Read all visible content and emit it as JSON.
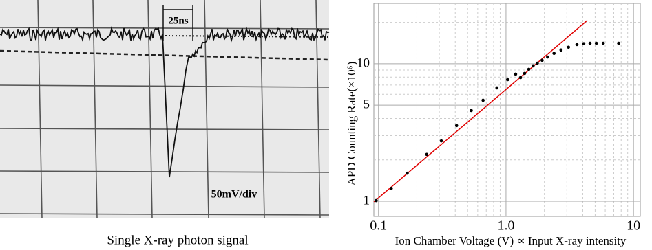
{
  "oscilloscope": {
    "time_label": "25ns",
    "scale_label": "50mV/div",
    "caption": "Single X-ray photon signal"
  },
  "chart_data": {
    "type": "scatter",
    "xlabel": "Ion Chamber Voltage (V) ∝ Input X-ray intensity",
    "ylabel": "APD Counting Rate(×10⁶)",
    "log_x": true,
    "log_y": true,
    "grid": true,
    "xlim": [
      0.092,
      11.3
    ],
    "ylim": [
      0.776,
      27.5
    ],
    "xticks": [
      0.1,
      {
        "value": 1,
        "label": "1.0"
      },
      10
    ],
    "yticks": [
      1,
      5,
      10
    ],
    "minor_xticks": [
      0.2,
      0.3,
      0.4,
      0.5,
      0.6,
      0.7,
      0.8,
      0.9,
      2,
      3,
      4,
      5,
      6,
      7,
      8,
      9
    ],
    "minor_yticks": [
      2,
      3,
      4,
      6,
      7,
      8,
      9,
      20
    ],
    "series": [
      {
        "color": "#000000",
        "x": [
          0.096,
          0.126,
          0.168,
          0.239,
          0.311,
          0.41,
          0.534,
          0.661,
          0.849,
          1.03,
          1.19,
          1.3,
          1.4,
          1.51,
          1.63,
          1.76,
          1.92,
          2.12,
          2.38,
          2.7,
          3.09,
          3.6,
          4.07,
          4.56,
          5.11,
          5.79,
          7.64
        ],
        "values": [
          1.01,
          1.24,
          1.6,
          2.19,
          2.75,
          3.55,
          4.57,
          5.43,
          6.68,
          7.67,
          8.41,
          7.94,
          8.51,
          9.12,
          9.66,
          10.1,
          10.6,
          11.2,
          11.9,
          12.6,
          13.2,
          13.8,
          14.0,
          14.1,
          14.1,
          14.1,
          14.1
        ]
      }
    ],
    "fit": {
      "color": "#e00000",
      "x": [
        0.092,
        4.34
      ],
      "values": [
        0.99,
        20.7
      ]
    }
  }
}
